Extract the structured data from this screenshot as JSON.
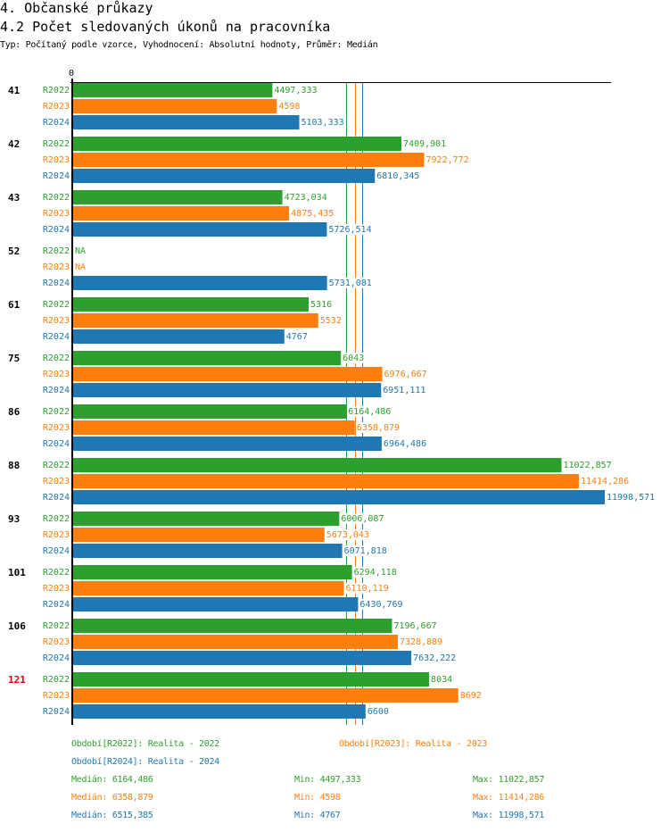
{
  "header": {
    "section_title": "4. Občanské průkazy",
    "chart_title": "4.2 Počet sledovaných úkonů na pracovníka",
    "subtitle": "Typ: Počítaný podle vzorce, Vyhodnocení: Absolutní hodnoty, Průměr: Medián"
  },
  "chart_data": {
    "type": "bar",
    "orientation": "horizontal",
    "title": "4.2 Počet sledovaných úkonů na pracovníka",
    "axis_zero_label": "0",
    "xlim": [
      0,
      12500
    ],
    "colors": {
      "R2022": "#2ca02c",
      "R2023": "#ff7f0e",
      "R2024": "#1f77b4"
    },
    "series_names": [
      "R2022",
      "R2023",
      "R2024"
    ],
    "categories": [
      {
        "label": "41",
        "highlight": false,
        "values": [
          4497.333,
          4598,
          5103.333
        ],
        "labels": [
          "4497,333",
          "4598",
          "5103,333"
        ]
      },
      {
        "label": "42",
        "highlight": false,
        "values": [
          7409.901,
          7922.772,
          6810.345
        ],
        "labels": [
          "7409,901",
          "7922,772",
          "6810,345"
        ]
      },
      {
        "label": "43",
        "highlight": false,
        "values": [
          4723.034,
          4875.435,
          5726.514
        ],
        "labels": [
          "4723,034",
          "4875,435",
          "5726,514"
        ]
      },
      {
        "label": "52",
        "highlight": false,
        "values": [
          null,
          null,
          5731.081
        ],
        "labels": [
          "NA",
          "NA",
          "5731,081"
        ]
      },
      {
        "label": "61",
        "highlight": false,
        "values": [
          5316,
          5532,
          4767
        ],
        "labels": [
          "5316",
          "5532",
          "4767"
        ]
      },
      {
        "label": "75",
        "highlight": false,
        "values": [
          6043,
          6976.667,
          6951.111
        ],
        "labels": [
          "6043",
          "6976,667",
          "6951,111"
        ]
      },
      {
        "label": "86",
        "highlight": false,
        "values": [
          6164.486,
          6358.879,
          6964.486
        ],
        "labels": [
          "6164,486",
          "6358,879",
          "6964,486"
        ]
      },
      {
        "label": "88",
        "highlight": false,
        "values": [
          11022.857,
          11414.286,
          11998.571
        ],
        "labels": [
          "11022,857",
          "11414,286",
          "11998,571"
        ]
      },
      {
        "label": "93",
        "highlight": false,
        "values": [
          6006.087,
          5673.043,
          6071.818
        ],
        "labels": [
          "6006,087",
          "5673,043",
          "6071,818"
        ]
      },
      {
        "label": "101",
        "highlight": false,
        "values": [
          6294.118,
          6110.119,
          6430.769
        ],
        "labels": [
          "6294,118",
          "6110,119",
          "6430,769"
        ]
      },
      {
        "label": "106",
        "highlight": false,
        "values": [
          7196.667,
          7328.889,
          7632.222
        ],
        "labels": [
          "7196,667",
          "7328,889",
          "7632,222"
        ]
      },
      {
        "label": "121",
        "highlight": true,
        "values": [
          8034,
          8692,
          6600
        ],
        "labels": [
          "8034",
          "8692",
          "6600"
        ]
      }
    ],
    "highlight_color": "#e8000b",
    "median_lines": [
      {
        "series": "R2022",
        "value": 6164.486
      },
      {
        "series": "R2023",
        "value": 6358.879
      },
      {
        "series": "R2024",
        "value": 6515.385
      }
    ]
  },
  "legend": {
    "periods": [
      "Období[R2022]: Realita - 2022",
      "Období[R2023]: Realita - 2023",
      "Období[R2024]: Realita - 2024"
    ],
    "stats": [
      {
        "median": "Medián: 6164,486",
        "min": "Min: 4497,333",
        "max": "Max: 11022,857"
      },
      {
        "median": "Medián: 6358,879",
        "min": "Min: 4598",
        "max": "Max: 11414,286"
      },
      {
        "median": "Medián: 6515,385",
        "min": "Min: 4767",
        "max": "Max: 11998,571"
      }
    ]
  }
}
